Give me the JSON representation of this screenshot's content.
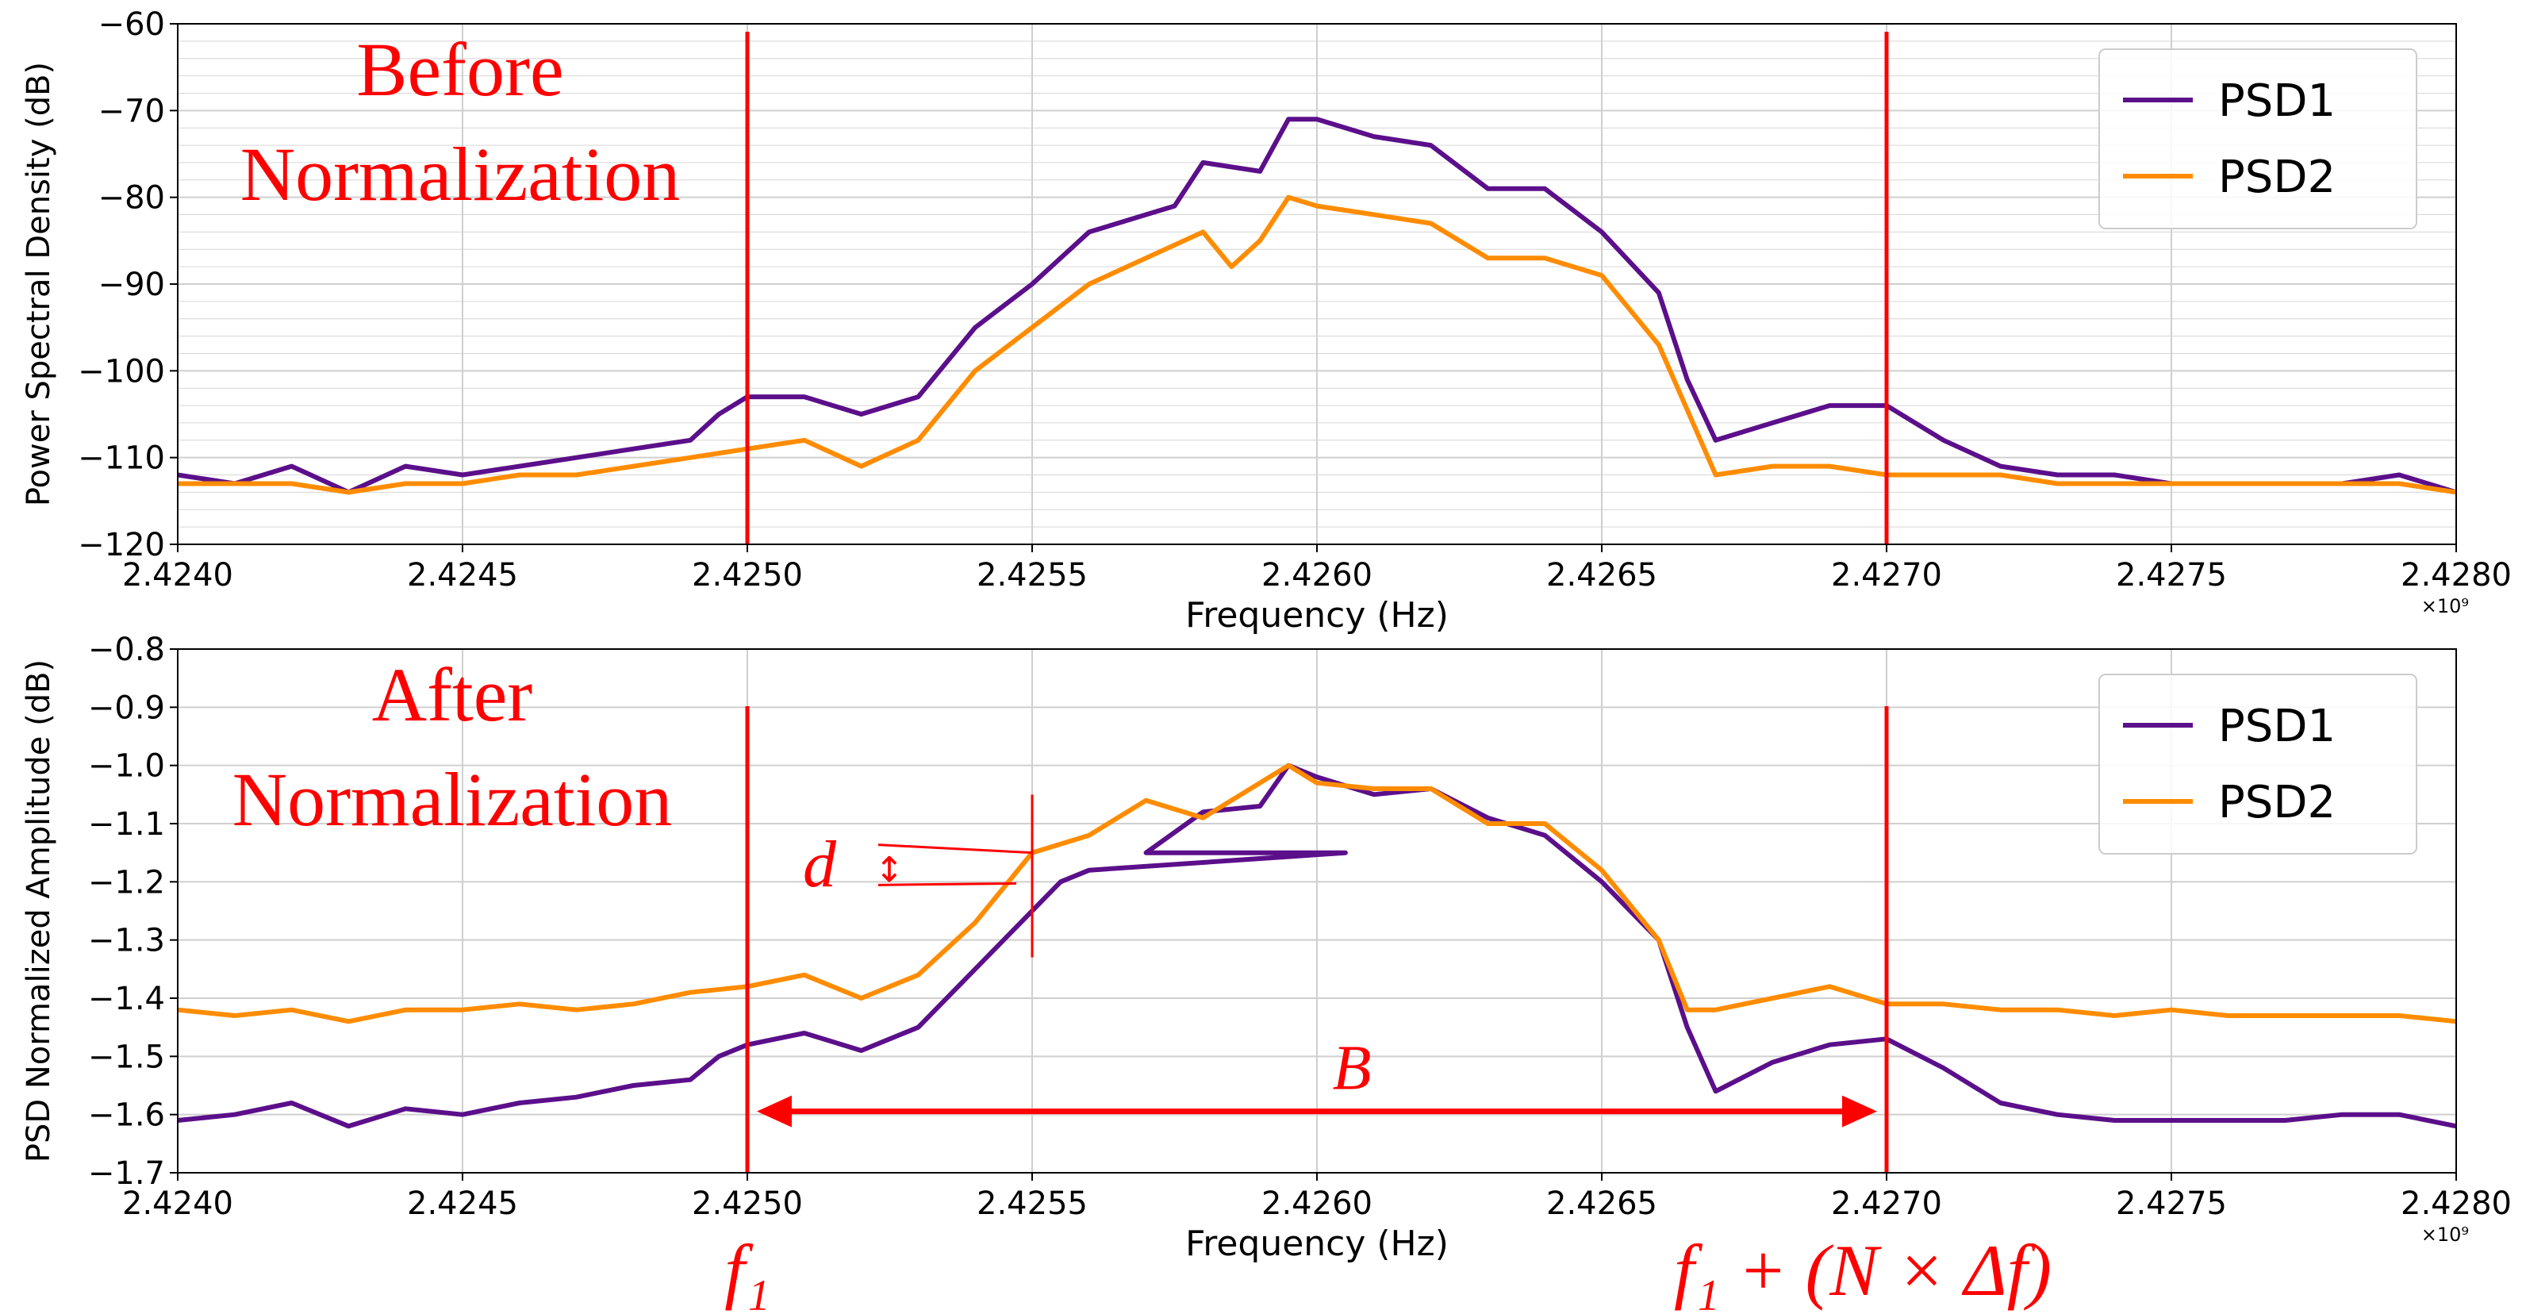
{
  "chart_data": [
    {
      "type": "line",
      "title": "",
      "annotation_title": "Before Normalization",
      "annotation_title_lines": [
        "Before",
        "Normalization"
      ],
      "xlabel": "Frequency (Hz)",
      "ylabel": "Power Spectral Density (dB)",
      "x_offset_text": "×10⁹",
      "xlim": [
        2.424,
        2.428
      ],
      "ylim": [
        -120,
        -60
      ],
      "xticks": [
        2.424,
        2.4245,
        2.425,
        2.4255,
        2.426,
        2.4265,
        2.427,
        2.4275,
        2.428
      ],
      "xtick_labels": [
        "2.4240",
        "2.4245",
        "2.4250",
        "2.4255",
        "2.4260",
        "2.4265",
        "2.4270",
        "2.4275",
        "2.4280"
      ],
      "yticks": [
        -120,
        -110,
        -100,
        -90,
        -80,
        -70,
        -60
      ],
      "ytick_labels": [
        "−120",
        "−110",
        "−100",
        "−90",
        "−80",
        "−70",
        "−60"
      ],
      "grid": true,
      "minor_grid_y": true,
      "legend": "top-right",
      "vlines": [
        2.425,
        2.427
      ],
      "series": [
        {
          "name": "PSD1",
          "color": "#5b0f8a",
          "points": [
            [
              2.424,
              -112
            ],
            [
              2.4241,
              -113
            ],
            [
              2.4242,
              -111
            ],
            [
              2.4243,
              -114
            ],
            [
              2.4244,
              -111
            ],
            [
              2.4245,
              -112
            ],
            [
              2.4246,
              -111
            ],
            [
              2.4247,
              -110
            ],
            [
              2.4248,
              -109
            ],
            [
              2.4249,
              -108
            ],
            [
              2.42495,
              -105
            ],
            [
              2.425,
              -103
            ],
            [
              2.4251,
              -103
            ],
            [
              2.4252,
              -105
            ],
            [
              2.4253,
              -103
            ],
            [
              2.4254,
              -95
            ],
            [
              2.4255,
              -90
            ],
            [
              2.42555,
              -87
            ],
            [
              2.4256,
              -84
            ],
            [
              2.4257,
              -82
            ],
            [
              2.42575,
              -81
            ],
            [
              2.4258,
              -76
            ],
            [
              2.4259,
              -77
            ],
            [
              2.42595,
              -71
            ],
            [
              2.426,
              -71
            ],
            [
              2.4261,
              -73
            ],
            [
              2.4262,
              -74
            ],
            [
              2.4263,
              -79
            ],
            [
              2.4264,
              -79
            ],
            [
              2.4265,
              -84
            ],
            [
              2.4266,
              -91
            ],
            [
              2.42665,
              -101
            ],
            [
              2.4267,
              -108
            ],
            [
              2.4268,
              -106
            ],
            [
              2.4269,
              -104
            ],
            [
              2.427,
              -104
            ],
            [
              2.4271,
              -108
            ],
            [
              2.4272,
              -111
            ],
            [
              2.4273,
              -112
            ],
            [
              2.4274,
              -112
            ],
            [
              2.4275,
              -113
            ],
            [
              2.4276,
              -113
            ],
            [
              2.4277,
              -113
            ],
            [
              2.4278,
              -113
            ],
            [
              2.4279,
              -112
            ],
            [
              2.428,
              -114
            ]
          ]
        },
        {
          "name": "PSD2",
          "color": "#ff8c00",
          "points": [
            [
              2.424,
              -113
            ],
            [
              2.4241,
              -113
            ],
            [
              2.4242,
              -113
            ],
            [
              2.4243,
              -114
            ],
            [
              2.4244,
              -113
            ],
            [
              2.4245,
              -113
            ],
            [
              2.4246,
              -112
            ],
            [
              2.4247,
              -112
            ],
            [
              2.4248,
              -111
            ],
            [
              2.4249,
              -110
            ],
            [
              2.425,
              -109
            ],
            [
              2.4251,
              -108
            ],
            [
              2.4252,
              -111
            ],
            [
              2.4253,
              -108
            ],
            [
              2.4254,
              -100
            ],
            [
              2.4255,
              -95
            ],
            [
              2.4256,
              -90
            ],
            [
              2.4257,
              -87
            ],
            [
              2.4258,
              -84
            ],
            [
              2.42585,
              -88
            ],
            [
              2.4259,
              -85
            ],
            [
              2.42595,
              -80
            ],
            [
              2.426,
              -81
            ],
            [
              2.4261,
              -82
            ],
            [
              2.4262,
              -83
            ],
            [
              2.4263,
              -87
            ],
            [
              2.4264,
              -87
            ],
            [
              2.4265,
              -89
            ],
            [
              2.4266,
              -97
            ],
            [
              2.4267,
              -112
            ],
            [
              2.4268,
              -111
            ],
            [
              2.4269,
              -111
            ],
            [
              2.427,
              -112
            ],
            [
              2.4271,
              -112
            ],
            [
              2.4272,
              -112
            ],
            [
              2.4273,
              -113
            ],
            [
              2.4274,
              -113
            ],
            [
              2.4275,
              -113
            ],
            [
              2.4276,
              -113
            ],
            [
              2.4277,
              -113
            ],
            [
              2.4278,
              -113
            ],
            [
              2.4279,
              -113
            ],
            [
              2.428,
              -114
            ]
          ]
        }
      ]
    },
    {
      "type": "line",
      "title": "",
      "annotation_title": "After Normalization",
      "annotation_title_lines": [
        "After",
        "Normalization"
      ],
      "xlabel": "Frequency (Hz)",
      "ylabel": "PSD Normalized Amplitude (dB)",
      "x_offset_text": "×10⁹",
      "xlim": [
        2.424,
        2.428
      ],
      "ylim": [
        -1.7,
        -0.8
      ],
      "xticks": [
        2.424,
        2.4245,
        2.425,
        2.4255,
        2.426,
        2.4265,
        2.427,
        2.4275,
        2.428
      ],
      "xtick_labels": [
        "2.4240",
        "2.4245",
        "2.4250",
        "2.4255",
        "2.4260",
        "2.4265",
        "2.4270",
        "2.4275",
        "2.4280"
      ],
      "yticks": [
        -1.7,
        -1.6,
        -1.5,
        -1.4,
        -1.3,
        -1.2,
        -1.1,
        -1.0,
        -0.9,
        -0.8
      ],
      "ytick_labels": [
        "−1.7",
        "−1.6",
        "−1.5",
        "−1.4",
        "−1.3",
        "−1.2",
        "−1.1",
        "−1.0",
        "−0.9",
        "−0.8"
      ],
      "grid": true,
      "legend": "top-right",
      "vlines": [
        2.425,
        2.427
      ],
      "series": [
        {
          "name": "PSD1",
          "color": "#5b0f8a",
          "points": [
            [
              2.424,
              -1.61
            ],
            [
              2.4241,
              -1.6
            ],
            [
              2.4242,
              -1.58
            ],
            [
              2.4243,
              -1.62
            ],
            [
              2.4244,
              -1.59
            ],
            [
              2.4245,
              -1.6
            ],
            [
              2.4246,
              -1.58
            ],
            [
              2.4247,
              -1.57
            ],
            [
              2.4248,
              -1.55
            ],
            [
              2.4249,
              -1.54
            ],
            [
              2.42495,
              -1.5
            ],
            [
              2.425,
              -1.48
            ],
            [
              2.4251,
              -1.46
            ],
            [
              2.4252,
              -1.49
            ],
            [
              2.4253,
              -1.45
            ],
            [
              2.4254,
              -1.35
            ],
            [
              2.4255,
              -1.25
            ],
            [
              2.42555,
              -1.2
            ],
            [
              2.4256,
              -1.18
            ],
            [
              2.42605,
              -1.15
            ],
            [
              2.4257,
              -1.15
            ],
            [
              2.4258,
              -1.08
            ],
            [
              2.4259,
              -1.07
            ],
            [
              2.42595,
              -1.0
            ],
            [
              2.426,
              -1.02
            ],
            [
              2.4261,
              -1.05
            ],
            [
              2.4262,
              -1.04
            ],
            [
              2.4263,
              -1.09
            ],
            [
              2.4264,
              -1.12
            ],
            [
              2.4265,
              -1.2
            ],
            [
              2.4266,
              -1.3
            ],
            [
              2.42665,
              -1.45
            ],
            [
              2.4267,
              -1.56
            ],
            [
              2.4268,
              -1.51
            ],
            [
              2.4269,
              -1.48
            ],
            [
              2.427,
              -1.47
            ],
            [
              2.4271,
              -1.52
            ],
            [
              2.4272,
              -1.58
            ],
            [
              2.4273,
              -1.6
            ],
            [
              2.4274,
              -1.61
            ],
            [
              2.4275,
              -1.61
            ],
            [
              2.4276,
              -1.61
            ],
            [
              2.4277,
              -1.61
            ],
            [
              2.4278,
              -1.6
            ],
            [
              2.4279,
              -1.6
            ],
            [
              2.428,
              -1.62
            ]
          ]
        },
        {
          "name": "PSD2",
          "color": "#ff8c00",
          "points": [
            [
              2.424,
              -1.42
            ],
            [
              2.4241,
              -1.43
            ],
            [
              2.4242,
              -1.42
            ],
            [
              2.4243,
              -1.44
            ],
            [
              2.4244,
              -1.42
            ],
            [
              2.4245,
              -1.42
            ],
            [
              2.4246,
              -1.41
            ],
            [
              2.4247,
              -1.42
            ],
            [
              2.4248,
              -1.41
            ],
            [
              2.4249,
              -1.39
            ],
            [
              2.425,
              -1.38
            ],
            [
              2.4251,
              -1.36
            ],
            [
              2.4252,
              -1.4
            ],
            [
              2.4253,
              -1.36
            ],
            [
              2.4254,
              -1.27
            ],
            [
              2.4255,
              -1.15
            ],
            [
              2.4256,
              -1.12
            ],
            [
              2.4257,
              -1.06
            ],
            [
              2.4258,
              -1.09
            ],
            [
              2.42595,
              -1.0
            ],
            [
              2.426,
              -1.03
            ],
            [
              2.4261,
              -1.04
            ],
            [
              2.4262,
              -1.04
            ],
            [
              2.4263,
              -1.1
            ],
            [
              2.4264,
              -1.1
            ],
            [
              2.4265,
              -1.18
            ],
            [
              2.4266,
              -1.3
            ],
            [
              2.42665,
              -1.42
            ],
            [
              2.4267,
              -1.42
            ],
            [
              2.4268,
              -1.4
            ],
            [
              2.4269,
              -1.38
            ],
            [
              2.427,
              -1.41
            ],
            [
              2.4271,
              -1.41
            ],
            [
              2.4272,
              -1.42
            ],
            [
              2.4273,
              -1.42
            ],
            [
              2.4274,
              -1.43
            ],
            [
              2.4275,
              -1.42
            ],
            [
              2.4276,
              -1.43
            ],
            [
              2.4277,
              -1.43
            ],
            [
              2.4278,
              -1.43
            ],
            [
              2.4279,
              -1.43
            ],
            [
              2.428,
              -1.44
            ]
          ]
        }
      ]
    }
  ],
  "annotations": {
    "line_color": "#ff0000",
    "f1_label": "f₁",
    "f2_label": "f₁ + (N × Δf)",
    "bandwidth_label": "B",
    "bandwidth_range": [
      2.425,
      2.427
    ],
    "distance_label": "d",
    "distance_arrow": "↕",
    "distance_x": 2.4255,
    "distance_range": [
      -1.15,
      -1.2
    ],
    "distance_marker_range": [
      -1.05,
      -1.33
    ]
  }
}
